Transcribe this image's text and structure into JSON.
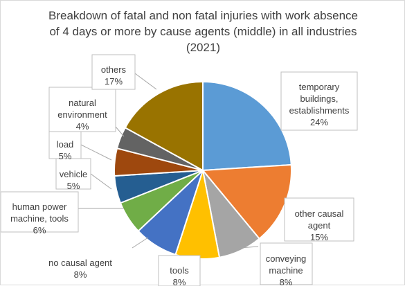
{
  "chart_data": {
    "type": "pie",
    "title_lines": [
      "Breakdown of fatal and non fatal injuries with work absence",
      "of 4 days or more by cause agents (middle) in all industries",
      "(2021)"
    ],
    "start_angle_deg": 0,
    "direction": "clockwise",
    "slices": [
      {
        "label_lines": [
          "temporary",
          "buildings,",
          "establishments"
        ],
        "value_text": "24%",
        "value": 24,
        "color": "#5b9bd5"
      },
      {
        "label_lines": [
          "other causal",
          "agent"
        ],
        "value_text": "15%",
        "value": 15,
        "color": "#ed7d31"
      },
      {
        "label_lines": [
          "conveying",
          "machine"
        ],
        "value_text": "8%",
        "value": 8,
        "color": "#a5a5a5"
      },
      {
        "label_lines": [
          "tools"
        ],
        "value_text": "8%",
        "value": 8,
        "color": "#ffc000"
      },
      {
        "label_lines": [
          "no causal agent"
        ],
        "value_text": "8%",
        "value": 8,
        "color": "#4472c4"
      },
      {
        "label_lines": [
          "human power",
          "machine, tools"
        ],
        "value_text": "6%",
        "value": 6,
        "color": "#70ad47"
      },
      {
        "label_lines": [
          "vehicle"
        ],
        "value_text": "5%",
        "value": 5,
        "color": "#255e91"
      },
      {
        "label_lines": [
          "load"
        ],
        "value_text": "5%",
        "value": 5,
        "color": "#9e480e"
      },
      {
        "label_lines": [
          "natural",
          "environment"
        ],
        "value_text": "4%",
        "value": 4,
        "color": "#636363"
      },
      {
        "label_lines": [
          "others"
        ],
        "value_text": "17%",
        "value": 17,
        "color": "#997300"
      }
    ]
  }
}
